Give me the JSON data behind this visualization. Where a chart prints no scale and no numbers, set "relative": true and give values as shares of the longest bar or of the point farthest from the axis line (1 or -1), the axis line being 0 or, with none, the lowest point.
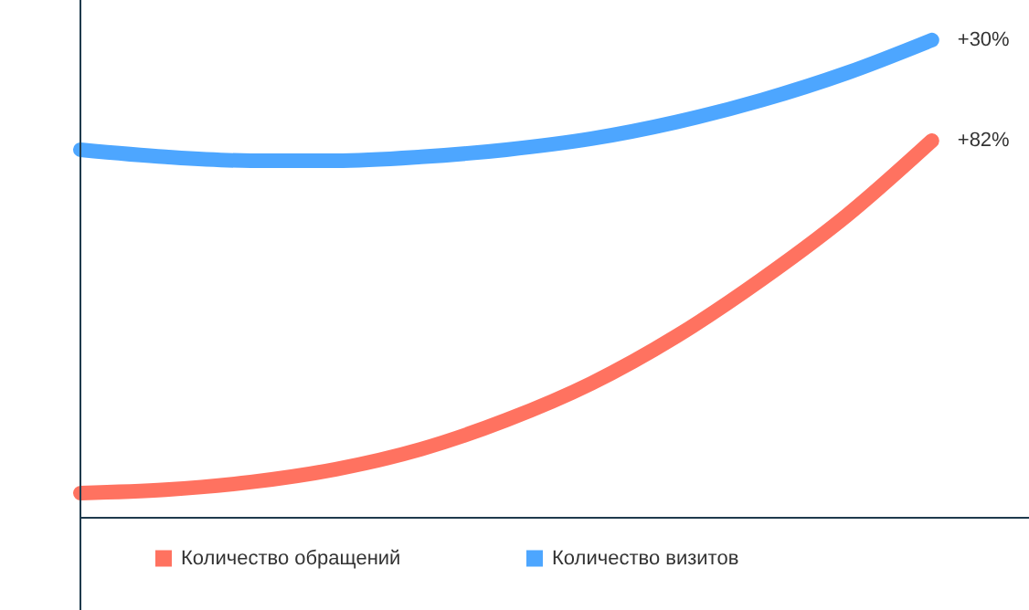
{
  "chart_data": {
    "type": "line",
    "relative": true,
    "categories": [
      null,
      null,
      null,
      null,
      null,
      null,
      null,
      null,
      null,
      null,
      null
    ],
    "series": [
      {
        "name": "Количество обращений",
        "color": "#ff7260",
        "values": [
          0.05,
          0.057,
          0.073,
          0.1,
          0.142,
          0.203,
          0.28,
          0.379,
          0.498,
          0.632,
          0.789
        ]
      },
      {
        "name": "Количество визитов",
        "color": "#4da6ff",
        "values": [
          0.77,
          0.755,
          0.747,
          0.747,
          0.755,
          0.77,
          0.793,
          0.828,
          0.874,
          0.931,
          1.0
        ]
      }
    ],
    "annotations": [
      "+82%",
      "+30%"
    ],
    "legend": "bottom",
    "grid": false,
    "tick_labels": false,
    "line_style": "solid"
  }
}
